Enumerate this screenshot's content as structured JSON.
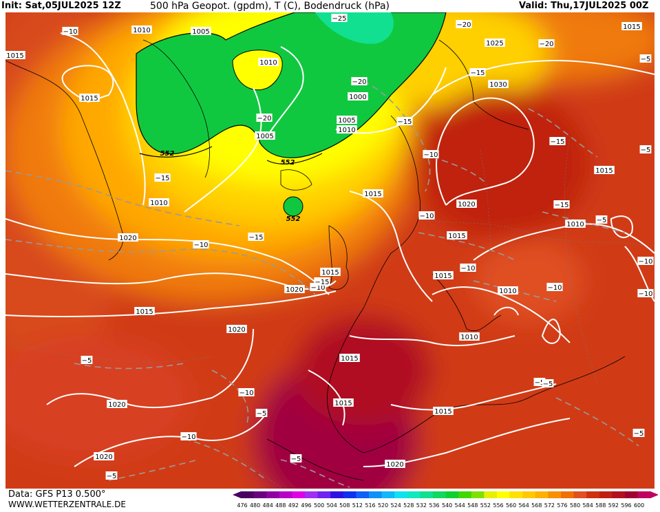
{
  "header": {
    "init": "Init: Sat,05JUL2025 12Z",
    "title": "500 hPa Geopot. (gpdm), T (C), Bodendruck (hPa)",
    "valid": "Valid: Thu,17JUL2025 00Z"
  },
  "footer": {
    "data_source": "Data: GFS P13 0.500°",
    "website": "WWW.WETTERZENTRALE.DE"
  },
  "legend": {
    "values": [
      "476",
      "480",
      "484",
      "488",
      "492",
      "496",
      "500",
      "504",
      "508",
      "512",
      "516",
      "520",
      "524",
      "528",
      "532",
      "536",
      "540",
      "544",
      "548",
      "552",
      "556",
      "560",
      "564",
      "568",
      "572",
      "576",
      "580",
      "584",
      "588",
      "592",
      "596",
      "600"
    ],
    "colors": [
      "#4a0060",
      "#6a0080",
      "#9000a0",
      "#b800c8",
      "#e000e8",
      "#a030f0",
      "#7020f0",
      "#3010e0",
      "#1030f0",
      "#1060f8",
      "#1090f8",
      "#10b8f8",
      "#10e0f0",
      "#10e8c0",
      "#10e090",
      "#10d860",
      "#10d030",
      "#40d800",
      "#80e000",
      "#e8f000",
      "#ffff00",
      "#ffe000",
      "#ffc800",
      "#ffb000",
      "#f89000",
      "#f07000",
      "#e05020",
      "#d03010",
      "#c02010",
      "#b01020",
      "#a00030",
      "#c00060"
    ]
  },
  "pressure_labels": [
    "1010",
    "1005",
    "1015",
    "1010",
    "1015",
    "1005",
    "1010",
    "1020",
    "1025",
    "1030",
    "1015",
    "1000",
    "1005",
    "1010",
    "1015",
    "1020",
    "1015",
    "1010",
    "1015",
    "1015",
    "1020",
    "1015",
    "1015",
    "1020",
    "1015",
    "1010",
    "1020",
    "1020",
    "1015",
    "1015",
    "1020",
    "1010"
  ],
  "temp_labels": [
    "-10",
    "-25",
    "-20",
    "-20",
    "-15",
    "-20",
    "-15",
    "-15",
    "-10",
    "-15",
    "-20",
    "-15",
    "-10",
    "-10",
    "-15",
    "-10",
    "-5",
    "-10",
    "-15",
    "-10",
    "-10",
    "-10",
    "-5",
    "-5",
    "-5",
    "-10",
    "-5",
    "-5",
    "-5",
    "-5",
    "-5",
    "-10",
    "-5"
  ],
  "geopotential_labels": [
    "552",
    "552",
    "552"
  ]
}
